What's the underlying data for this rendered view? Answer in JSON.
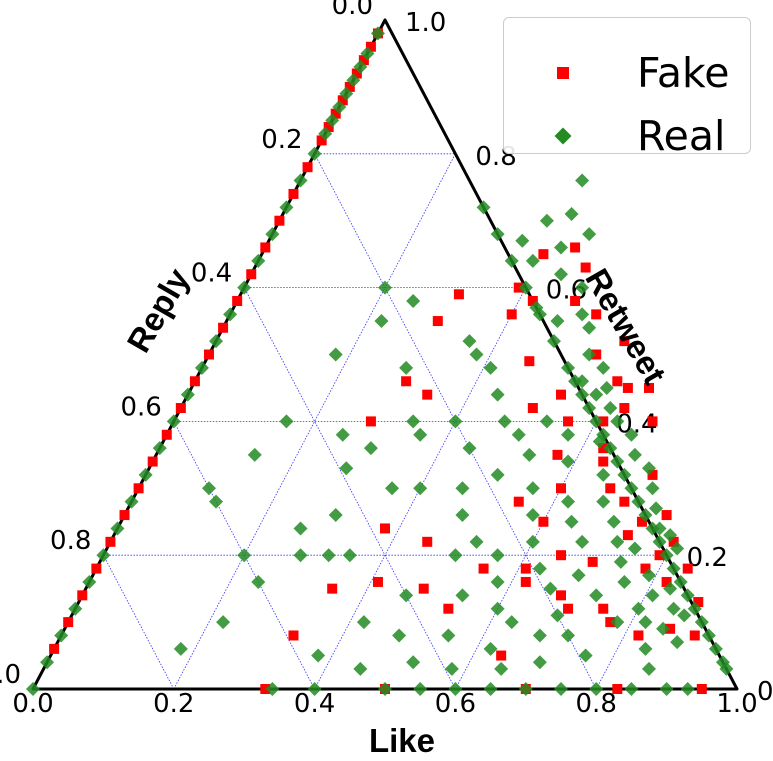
{
  "chart_data": {
    "type": "scatter",
    "subtype": "ternary",
    "axes": {
      "bottom": "Like",
      "left": "Reply",
      "right": "Retweet"
    },
    "ticks": [
      "0.0",
      "0.2",
      "0.4",
      "0.6",
      "0.8",
      "1.0"
    ],
    "range": [
      0,
      1
    ],
    "grid": true,
    "legend_position": "top-right",
    "colors": {
      "Fake": "#ff0000",
      "Real": "#228b22",
      "grid": "#0000ff",
      "frame": "#000000"
    },
    "series": [
      {
        "name": "Fake",
        "marker": "square",
        "points": [
          [
            0.0,
            0.98
          ],
          [
            0.0,
            0.96
          ],
          [
            0.0,
            0.94
          ],
          [
            0.0,
            0.92
          ],
          [
            0.0,
            0.9
          ],
          [
            0.0,
            0.88
          ],
          [
            0.0,
            0.86
          ],
          [
            0.0,
            0.84
          ],
          [
            0.0,
            0.82
          ],
          [
            0.0,
            0.78
          ],
          [
            0.0,
            0.74
          ],
          [
            0.0,
            0.7
          ],
          [
            0.0,
            0.66
          ],
          [
            0.0,
            0.62
          ],
          [
            0.0,
            0.58
          ],
          [
            0.0,
            0.54
          ],
          [
            0.0,
            0.5
          ],
          [
            0.0,
            0.46
          ],
          [
            0.0,
            0.42
          ],
          [
            0.0,
            0.38
          ],
          [
            0.0,
            0.34
          ],
          [
            0.0,
            0.3
          ],
          [
            0.0,
            0.26
          ],
          [
            0.0,
            0.22
          ],
          [
            0.0,
            0.18
          ],
          [
            0.0,
            0.14
          ],
          [
            0.0,
            0.1
          ],
          [
            0.0,
            0.06
          ],
          [
            0.33,
            0.0
          ],
          [
            0.5,
            0.0
          ],
          [
            0.7,
            0.0
          ],
          [
            0.83,
            0.0
          ],
          [
            0.95,
            0.0
          ],
          [
            0.68,
            0.4
          ],
          [
            0.63,
            0.42
          ],
          [
            0.6,
            0.46
          ],
          [
            0.62,
            0.45
          ],
          [
            0.65,
            0.45
          ],
          [
            0.61,
            0.4
          ],
          [
            0.63,
            0.36
          ],
          [
            0.58,
            0.52
          ],
          [
            0.55,
            0.5
          ],
          [
            0.52,
            0.56
          ],
          [
            0.48,
            0.58
          ],
          [
            0.47,
            0.63
          ],
          [
            0.44,
            0.66
          ],
          [
            0.4,
            0.65
          ],
          [
            0.39,
            0.6
          ],
          [
            0.4,
            0.56
          ],
          [
            0.31,
            0.59
          ],
          [
            0.3,
            0.55
          ],
          [
            0.3,
            0.46
          ],
          [
            0.34,
            0.44
          ],
          [
            0.28,
            0.4
          ],
          [
            0.42,
            0.58
          ],
          [
            0.46,
            0.49
          ],
          [
            0.5,
            0.42
          ],
          [
            0.53,
            0.44
          ],
          [
            0.56,
            0.4
          ],
          [
            0.57,
            0.35
          ],
          [
            0.6,
            0.3
          ],
          [
            0.64,
            0.34
          ],
          [
            0.67,
            0.3
          ],
          [
            0.7,
            0.28
          ],
          [
            0.74,
            0.25
          ],
          [
            0.72,
            0.32
          ],
          [
            0.77,
            0.26
          ],
          [
            0.8,
            0.22
          ],
          [
            0.55,
            0.28
          ],
          [
            0.6,
            0.25
          ],
          [
            0.61,
            0.18
          ],
          [
            0.65,
            0.2
          ],
          [
            0.7,
            0.19
          ],
          [
            0.73,
            0.23
          ],
          [
            0.78,
            0.18
          ],
          [
            0.79,
            0.2
          ],
          [
            0.82,
            0.16
          ],
          [
            0.84,
            0.18
          ],
          [
            0.88,
            0.13
          ],
          [
            0.9,
            0.08
          ],
          [
            0.7,
            0.12
          ],
          [
            0.77,
            0.1
          ],
          [
            0.62,
            0.16
          ],
          [
            0.55,
            0.18
          ],
          [
            0.53,
            0.12
          ],
          [
            0.64,
            0.05
          ],
          [
            0.82,
            0.08
          ],
          [
            0.86,
            0.09
          ],
          [
            0.45,
            0.22
          ],
          [
            0.48,
            0.15
          ],
          [
            0.41,
            0.16
          ],
          [
            0.38,
            0.24
          ],
          [
            0.33,
            0.08
          ],
          [
            0.35,
            0.15
          ],
          [
            0.68,
            0.14
          ],
          [
            0.75,
            0.12
          ]
        ]
      },
      {
        "name": "Real",
        "marker": "diamond",
        "points": [
          [
            0.0,
            0.98
          ],
          [
            0.0,
            0.95
          ],
          [
            0.0,
            0.93
          ],
          [
            0.0,
            0.91
          ],
          [
            0.0,
            0.89
          ],
          [
            0.0,
            0.87
          ],
          [
            0.0,
            0.85
          ],
          [
            0.0,
            0.83
          ],
          [
            0.0,
            0.8
          ],
          [
            0.0,
            0.76
          ],
          [
            0.0,
            0.72
          ],
          [
            0.0,
            0.68
          ],
          [
            0.0,
            0.64
          ],
          [
            0.0,
            0.6
          ],
          [
            0.0,
            0.56
          ],
          [
            0.0,
            0.52
          ],
          [
            0.0,
            0.48
          ],
          [
            0.0,
            0.44
          ],
          [
            0.0,
            0.4
          ],
          [
            0.0,
            0.36
          ],
          [
            0.0,
            0.32
          ],
          [
            0.0,
            0.28
          ],
          [
            0.0,
            0.24
          ],
          [
            0.0,
            0.2
          ],
          [
            0.0,
            0.16
          ],
          [
            0.0,
            0.12
          ],
          [
            0.0,
            0.08
          ],
          [
            0.0,
            0.04
          ],
          [
            0.0,
            0.0
          ],
          [
            0.34,
            0.0
          ],
          [
            0.4,
            0.0
          ],
          [
            0.5,
            0.0
          ],
          [
            0.55,
            0.0
          ],
          [
            0.6,
            0.0
          ],
          [
            0.65,
            0.0
          ],
          [
            0.7,
            0.0
          ],
          [
            0.75,
            0.0
          ],
          [
            0.8,
            0.0
          ],
          [
            0.85,
            0.0
          ],
          [
            0.9,
            0.0
          ],
          [
            0.93,
            0.0
          ],
          [
            0.97,
            0.03
          ],
          [
            0.96,
            0.04
          ],
          [
            0.94,
            0.06
          ],
          [
            0.92,
            0.08
          ],
          [
            0.9,
            0.1
          ],
          [
            0.88,
            0.12
          ],
          [
            0.86,
            0.14
          ],
          [
            0.84,
            0.16
          ],
          [
            0.82,
            0.18
          ],
          [
            0.8,
            0.2
          ],
          [
            0.78,
            0.22
          ],
          [
            0.76,
            0.24
          ],
          [
            0.74,
            0.26
          ],
          [
            0.72,
            0.28
          ],
          [
            0.7,
            0.3
          ],
          [
            0.68,
            0.32
          ],
          [
            0.66,
            0.34
          ],
          [
            0.64,
            0.36
          ],
          [
            0.62,
            0.38
          ],
          [
            0.6,
            0.4
          ],
          [
            0.58,
            0.42
          ],
          [
            0.56,
            0.44
          ],
          [
            0.54,
            0.46
          ],
          [
            0.52,
            0.48
          ],
          [
            0.48,
            0.52
          ],
          [
            0.44,
            0.56
          ],
          [
            0.4,
            0.6
          ],
          [
            0.36,
            0.64
          ],
          [
            0.32,
            0.68
          ],
          [
            0.28,
            0.72
          ],
          [
            0.4,
            0.76
          ],
          [
            0.41,
            0.71
          ],
          [
            0.38,
            0.7
          ],
          [
            0.36,
            0.67
          ],
          [
            0.42,
            0.66
          ],
          [
            0.45,
            0.68
          ],
          [
            0.39,
            0.64
          ],
          [
            0.44,
            0.62
          ],
          [
            0.48,
            0.6
          ],
          [
            0.5,
            0.56
          ],
          [
            0.52,
            0.54
          ],
          [
            0.47,
            0.55
          ],
          [
            0.43,
            0.57
          ],
          [
            0.54,
            0.5
          ],
          [
            0.57,
            0.48
          ],
          [
            0.59,
            0.45
          ],
          [
            0.55,
            0.46
          ],
          [
            0.58,
            0.44
          ],
          [
            0.61,
            0.42
          ],
          [
            0.63,
            0.4
          ],
          [
            0.66,
            0.38
          ],
          [
            0.62,
            0.37
          ],
          [
            0.65,
            0.32
          ],
          [
            0.68,
            0.35
          ],
          [
            0.71,
            0.33
          ],
          [
            0.67,
            0.28
          ],
          [
            0.73,
            0.3
          ],
          [
            0.75,
            0.27
          ],
          [
            0.7,
            0.25
          ],
          [
            0.77,
            0.24
          ],
          [
            0.79,
            0.23
          ],
          [
            0.81,
            0.21
          ],
          [
            0.72,
            0.22
          ],
          [
            0.74,
            0.19
          ],
          [
            0.76,
            0.16
          ],
          [
            0.79,
            0.17
          ],
          [
            0.81,
            0.14
          ],
          [
            0.83,
            0.15
          ],
          [
            0.85,
            0.12
          ],
          [
            0.87,
            0.11
          ],
          [
            0.85,
            0.09
          ],
          [
            0.88,
            0.07
          ],
          [
            0.84,
            0.06
          ],
          [
            0.86,
            0.03
          ],
          [
            0.8,
            0.12
          ],
          [
            0.78,
            0.1
          ],
          [
            0.82,
            0.1
          ],
          [
            0.76,
            0.05
          ],
          [
            0.72,
            0.08
          ],
          [
            0.68,
            0.08
          ],
          [
            0.63,
            0.1
          ],
          [
            0.6,
            0.12
          ],
          [
            0.56,
            0.2
          ],
          [
            0.52,
            0.22
          ],
          [
            0.48,
            0.26
          ],
          [
            0.46,
            0.3
          ],
          [
            0.5,
            0.32
          ],
          [
            0.53,
            0.35
          ],
          [
            0.56,
            0.3
          ],
          [
            0.58,
            0.26
          ],
          [
            0.6,
            0.22
          ],
          [
            0.63,
            0.18
          ],
          [
            0.66,
            0.15
          ],
          [
            0.69,
            0.17
          ],
          [
            0.62,
            0.28
          ],
          [
            0.59,
            0.34
          ],
          [
            0.57,
            0.38
          ],
          [
            0.53,
            0.4
          ],
          [
            0.5,
            0.38
          ],
          [
            0.47,
            0.4
          ],
          [
            0.44,
            0.44
          ],
          [
            0.41,
            0.48
          ],
          [
            0.38,
            0.5
          ],
          [
            0.36,
            0.52
          ],
          [
            0.4,
            0.4
          ],
          [
            0.36,
            0.38
          ],
          [
            0.34,
            0.4
          ],
          [
            0.3,
            0.36
          ],
          [
            0.28,
            0.33
          ],
          [
            0.25,
            0.38
          ],
          [
            0.29,
            0.48
          ],
          [
            0.25,
            0.58
          ],
          [
            0.22,
            0.55
          ],
          [
            0.2,
            0.6
          ],
          [
            0.18,
            0.5
          ],
          [
            0.16,
            0.4
          ],
          [
            0.14,
            0.35
          ],
          [
            0.12,
            0.28
          ],
          [
            0.1,
            0.3
          ],
          [
            0.3,
            0.26
          ],
          [
            0.35,
            0.2
          ],
          [
            0.4,
            0.3
          ],
          [
            0.44,
            0.36
          ],
          [
            0.36,
            0.3
          ],
          [
            0.32,
            0.2
          ],
          [
            0.28,
            0.2
          ],
          [
            0.22,
            0.1
          ],
          [
            0.18,
            0.06
          ],
          [
            0.24,
            0.16
          ],
          [
            0.5,
            0.2
          ],
          [
            0.46,
            0.14
          ],
          [
            0.42,
            0.1
          ],
          [
            0.38,
            0.05
          ],
          [
            0.45,
            0.03
          ],
          [
            0.55,
            0.08
          ],
          [
            0.52,
            0.04
          ],
          [
            0.58,
            0.03
          ],
          [
            0.65,
            0.03
          ],
          [
            0.7,
            0.04
          ],
          [
            0.62,
            0.06
          ],
          [
            0.2,
            0.2
          ],
          [
            0.26,
            0.24
          ],
          [
            0.58,
            0.16
          ],
          [
            0.54,
            0.14
          ],
          [
            0.48,
            0.08
          ],
          [
            0.64,
            0.25
          ],
          [
            0.67,
            0.22
          ],
          [
            0.69,
            0.11
          ],
          [
            0.73,
            0.14
          ],
          [
            0.75,
            0.21
          ]
        ]
      }
    ]
  }
}
